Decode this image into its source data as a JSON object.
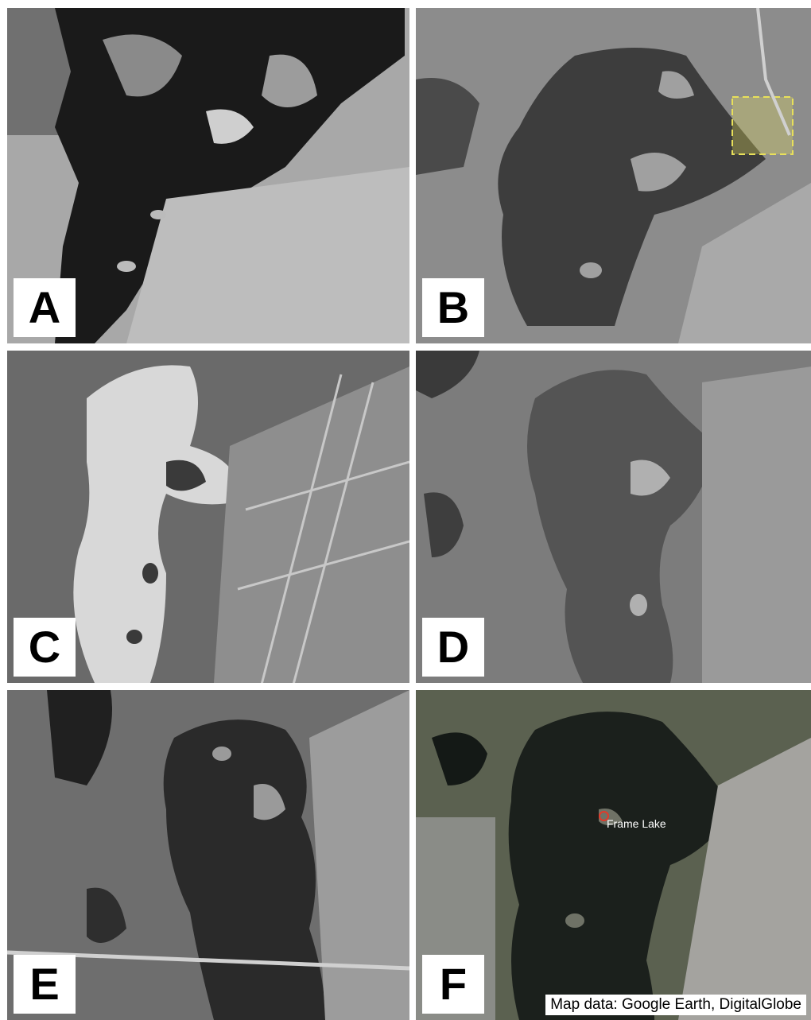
{
  "panels": [
    {
      "label": "A"
    },
    {
      "label": "B"
    },
    {
      "label": "C"
    },
    {
      "label": "D"
    },
    {
      "label": "E"
    },
    {
      "label": "F",
      "credit": "Map data: Google Earth, DigitalGlobe",
      "place_label": "Frame Lake"
    }
  ],
  "colors": {
    "background": "#ffffff",
    "highlight_box": "#e8e05a",
    "pin": "#e23a2a"
  }
}
